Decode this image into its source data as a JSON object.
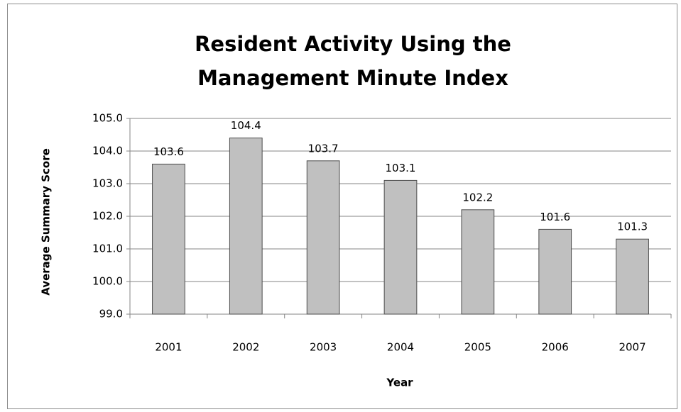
{
  "chart_data": {
    "type": "bar",
    "title": "Resident Activity Using the Management Minute Index",
    "x_label": "Year",
    "y_label": "Average Summary Score",
    "categories": [
      "2001",
      "2002",
      "2003",
      "2004",
      "2005",
      "2006",
      "2007"
    ],
    "values": [
      103.6,
      104.4,
      103.7,
      103.1,
      102.2,
      101.6,
      101.3
    ],
    "color": "#c0c0c0",
    "ylim": [
      99,
      105
    ],
    "yticks": [
      {
        "value": 99,
        "label": "99.0"
      },
      {
        "value": 100,
        "label": "100.0"
      },
      {
        "value": 101,
        "label": "101.0"
      },
      {
        "value": 102,
        "label": "102.0"
      },
      {
        "value": 103,
        "label": "103.0"
      },
      {
        "value": 104,
        "label": "104.0"
      },
      {
        "value": 105,
        "label": "105.0"
      }
    ],
    "grid": true
  }
}
